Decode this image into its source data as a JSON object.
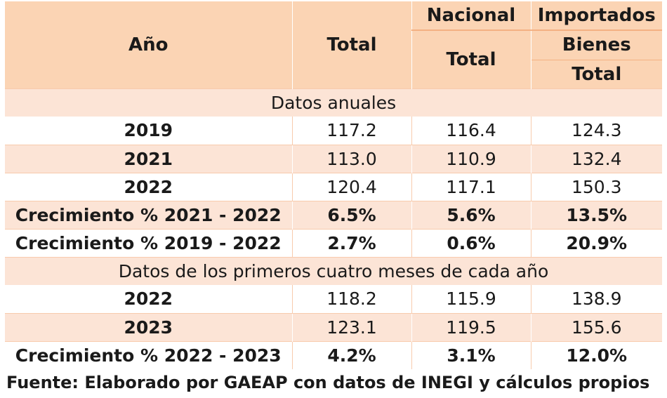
{
  "header": {
    "year": "Año",
    "total": "Total",
    "nacional": "Nacional",
    "nacional_total": "Total",
    "importados": "Importados",
    "bienes": "Bienes",
    "importados_total": "Total"
  },
  "sections": [
    {
      "title": "Datos anuales",
      "rows": [
        {
          "label": "2019",
          "total": "117.2",
          "nacional": "116.4",
          "importados": "124.3"
        },
        {
          "label": "2021",
          "total": "113.0",
          "nacional": "110.9",
          "importados": "132.4"
        },
        {
          "label": "2022",
          "total": "120.4",
          "nacional": "117.1",
          "importados": "150.3"
        },
        {
          "label": "Crecimiento % 2021 - 2022",
          "total": "6.5%",
          "nacional": "5.6%",
          "importados": "13.5%"
        },
        {
          "label": "Crecimiento % 2019 - 2022",
          "total": "2.7%",
          "nacional": "0.6%",
          "importados": "20.9%"
        }
      ]
    },
    {
      "title": "Datos de los primeros cuatro meses de cada año",
      "rows": [
        {
          "label": "2022",
          "total": "118.2",
          "nacional": "115.9",
          "importados": "138.9"
        },
        {
          "label": "2023",
          "total": "123.1",
          "nacional": "119.5",
          "importados": "155.6"
        },
        {
          "label": "Crecimiento % 2022 - 2023",
          "total": "4.2%",
          "nacional": "3.1%",
          "importados": "12.0%"
        }
      ]
    }
  ],
  "source": "Fuente: Elaborado por GAEAP con datos de INEGI y cálculos propios"
}
